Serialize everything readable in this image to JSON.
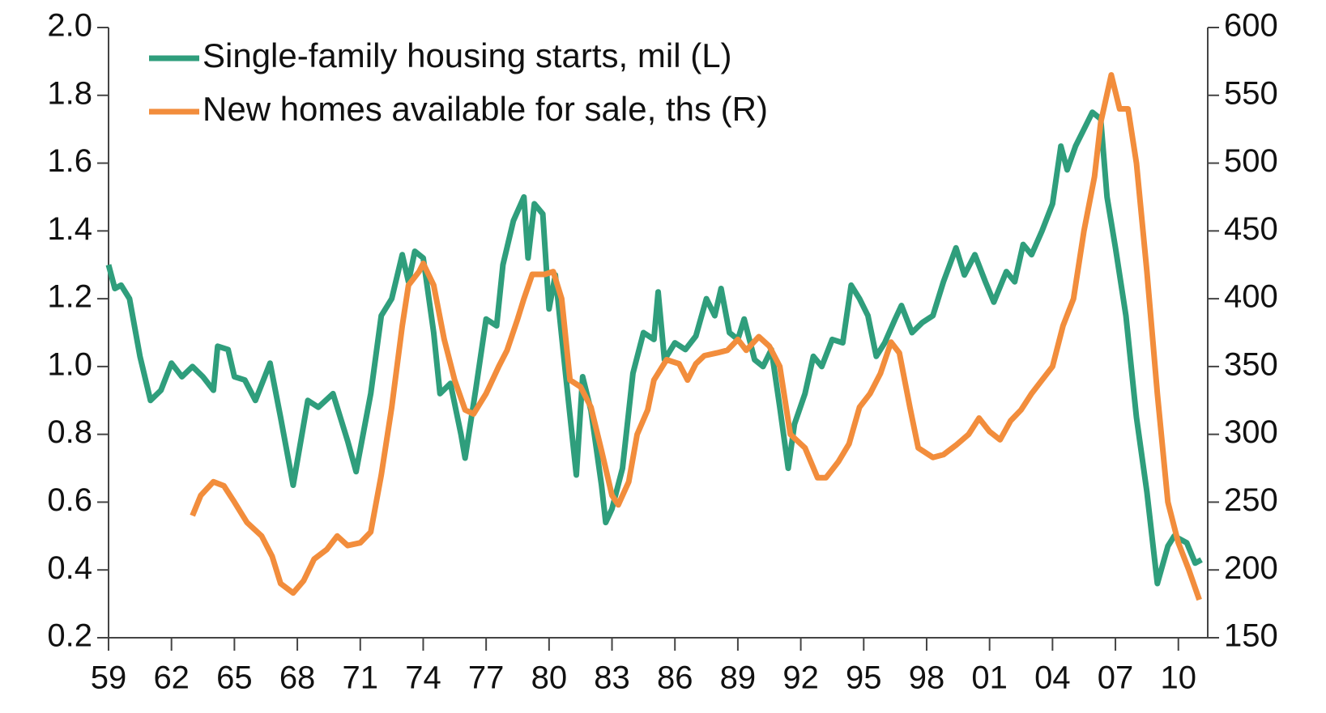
{
  "chart_data": {
    "type": "line",
    "xlim": [
      1959,
      2011.4
    ],
    "xticks": [
      {
        "value": 1959,
        "label": "59"
      },
      {
        "value": 1962,
        "label": "62"
      },
      {
        "value": 1965,
        "label": "65"
      },
      {
        "value": 1968,
        "label": "68"
      },
      {
        "value": 1971,
        "label": "71"
      },
      {
        "value": 1974,
        "label": "74"
      },
      {
        "value": 1977,
        "label": "77"
      },
      {
        "value": 1980,
        "label": "80"
      },
      {
        "value": 1983,
        "label": "83"
      },
      {
        "value": 1986,
        "label": "86"
      },
      {
        "value": 1989,
        "label": "89"
      },
      {
        "value": 1992,
        "label": "92"
      },
      {
        "value": 1995,
        "label": "95"
      },
      {
        "value": 1998,
        "label": "98"
      },
      {
        "value": 2001,
        "label": "01"
      },
      {
        "value": 2004,
        "label": "04"
      },
      {
        "value": 2007,
        "label": "07"
      },
      {
        "value": 2010,
        "label": "10"
      }
    ],
    "ylim": [
      0.2,
      2.0
    ],
    "yticks": [
      0.2,
      0.4,
      0.6,
      0.8,
      {
        "value": 1,
        "label": "1.0"
      },
      1.2,
      1.4,
      1.6,
      1.8,
      {
        "value": 2,
        "label": "2.0"
      }
    ],
    "y2lim": [
      150,
      600
    ],
    "y2ticks": [
      150,
      200,
      250,
      300,
      350,
      400,
      450,
      500,
      550,
      600
    ],
    "legend": "upper left",
    "series": [
      {
        "name": "Single-family housing starts, mil (L)",
        "color": "#2f9e7c",
        "x": [
          1959.0,
          1959.3,
          1959.6,
          1960.0,
          1960.5,
          1961.0,
          1961.5,
          1962.0,
          1962.5,
          1963.0,
          1963.5,
          1964.0,
          1964.2,
          1964.7,
          1965.0,
          1965.5,
          1966.0,
          1966.7,
          1967.2,
          1967.8,
          1968.5,
          1969.0,
          1969.7,
          1970.4,
          1970.8,
          1971.5,
          1972.0,
          1972.5,
          1973.0,
          1973.3,
          1973.6,
          1974.0,
          1974.5,
          1974.8,
          1975.3,
          1975.8,
          1976.0,
          1976.5,
          1977.0,
          1977.5,
          1977.8,
          1978.3,
          1978.8,
          1979.0,
          1979.3,
          1979.7,
          1980.0,
          1980.3,
          1980.8,
          1981.3,
          1981.6,
          1982.0,
          1982.5,
          1982.7,
          1983.0,
          1983.5,
          1984.0,
          1984.5,
          1985.0,
          1985.2,
          1985.5,
          1986.0,
          1986.5,
          1987.0,
          1987.5,
          1987.9,
          1988.2,
          1988.6,
          1989.0,
          1989.3,
          1989.8,
          1990.2,
          1990.6,
          1991.0,
          1991.4,
          1991.7,
          1992.2,
          1992.6,
          1993.0,
          1993.5,
          1994.0,
          1994.4,
          1994.8,
          1995.2,
          1995.6,
          1996.0,
          1996.5,
          1996.8,
          1997.3,
          1997.8,
          1998.3,
          1998.8,
          1999.4,
          1999.8,
          2000.3,
          2000.8,
          2001.2,
          2001.8,
          2002.2,
          2002.6,
          2003.0,
          2003.5,
          2004.0,
          2004.4,
          2004.7,
          2005.1,
          2005.5,
          2005.9,
          2006.3,
          2006.6,
          2007.0,
          2007.5,
          2008.0,
          2008.5,
          2009.0,
          2009.5,
          2009.8,
          2010.4,
          2010.8,
          2011.1
        ],
        "values": [
          1.3,
          1.23,
          1.24,
          1.2,
          1.03,
          0.9,
          0.93,
          1.01,
          0.97,
          1.0,
          0.97,
          0.93,
          1.06,
          1.05,
          0.97,
          0.96,
          0.9,
          1.01,
          0.85,
          0.65,
          0.9,
          0.88,
          0.92,
          0.78,
          0.69,
          0.92,
          1.15,
          1.2,
          1.33,
          1.25,
          1.34,
          1.32,
          1.1,
          0.92,
          0.95,
          0.8,
          0.73,
          0.93,
          1.14,
          1.12,
          1.3,
          1.43,
          1.5,
          1.32,
          1.48,
          1.45,
          1.17,
          1.27,
          0.97,
          0.68,
          0.97,
          0.87,
          0.65,
          0.54,
          0.58,
          0.7,
          0.98,
          1.1,
          1.08,
          1.22,
          1.02,
          1.07,
          1.05,
          1.09,
          1.2,
          1.15,
          1.23,
          1.1,
          1.08,
          1.14,
          1.02,
          1.0,
          1.05,
          0.88,
          0.7,
          0.83,
          0.92,
          1.03,
          1.0,
          1.08,
          1.07,
          1.24,
          1.2,
          1.15,
          1.03,
          1.07,
          1.14,
          1.18,
          1.1,
          1.13,
          1.15,
          1.25,
          1.35,
          1.27,
          1.33,
          1.25,
          1.19,
          1.28,
          1.25,
          1.36,
          1.33,
          1.4,
          1.48,
          1.65,
          1.58,
          1.65,
          1.7,
          1.75,
          1.73,
          1.5,
          1.35,
          1.15,
          0.85,
          0.63,
          0.36,
          0.47,
          0.5,
          0.48,
          0.42,
          0.43
        ]
      },
      {
        "name": "New homes available for sale, ths (R)",
        "color": "#f28d3c",
        "axis": "y2",
        "x": [
          1963.0,
          1963.4,
          1964.0,
          1964.5,
          1965.0,
          1965.6,
          1966.3,
          1966.8,
          1967.2,
          1967.8,
          1968.3,
          1968.8,
          1969.4,
          1969.9,
          1970.4,
          1971.0,
          1971.5,
          1972.0,
          1972.5,
          1973.0,
          1973.3,
          1973.8,
          1974.0,
          1974.5,
          1975.0,
          1975.5,
          1976.0,
          1976.4,
          1977.0,
          1977.6,
          1978.0,
          1978.5,
          1978.8,
          1979.2,
          1979.8,
          1980.2,
          1980.6,
          1981.0,
          1981.5,
          1982.0,
          1982.5,
          1983.0,
          1983.3,
          1983.8,
          1984.2,
          1984.7,
          1985.0,
          1985.6,
          1986.2,
          1986.6,
          1987.0,
          1987.4,
          1988.0,
          1988.5,
          1989.0,
          1989.4,
          1990.0,
          1990.5,
          1991.0,
          1991.5,
          1992.2,
          1992.8,
          1993.2,
          1993.8,
          1994.3,
          1994.8,
          1995.3,
          1995.8,
          1996.3,
          1996.7,
          1997.2,
          1997.6,
          1998.3,
          1998.8,
          1999.4,
          2000.0,
          2000.5,
          2001.0,
          2001.5,
          2002.0,
          2002.5,
          2003.0,
          2003.5,
          2004.0,
          2004.5,
          2005.0,
          2005.5,
          2006.0,
          2006.3,
          2006.8,
          2007.2,
          2007.6,
          2008.0,
          2008.5,
          2009.0,
          2009.5,
          2010.0,
          2010.5,
          2011.0
        ],
        "values": [
          240,
          255,
          265,
          262,
          250,
          235,
          225,
          210,
          190,
          183,
          192,
          208,
          215,
          225,
          218,
          220,
          228,
          270,
          320,
          380,
          410,
          420,
          426,
          410,
          370,
          340,
          318,
          315,
          330,
          350,
          362,
          385,
          400,
          418,
          418,
          420,
          400,
          340,
          335,
          320,
          288,
          255,
          248,
          265,
          300,
          318,
          340,
          355,
          352,
          340,
          352,
          358,
          360,
          362,
          370,
          362,
          372,
          365,
          350,
          300,
          290,
          268,
          268,
          280,
          293,
          320,
          330,
          345,
          368,
          360,
          320,
          290,
          283,
          285,
          292,
          300,
          312,
          302,
          296,
          310,
          318,
          330,
          340,
          350,
          380,
          400,
          450,
          490,
          530,
          565,
          540,
          540,
          500,
          420,
          330,
          250,
          220,
          200,
          178
        ]
      }
    ]
  }
}
